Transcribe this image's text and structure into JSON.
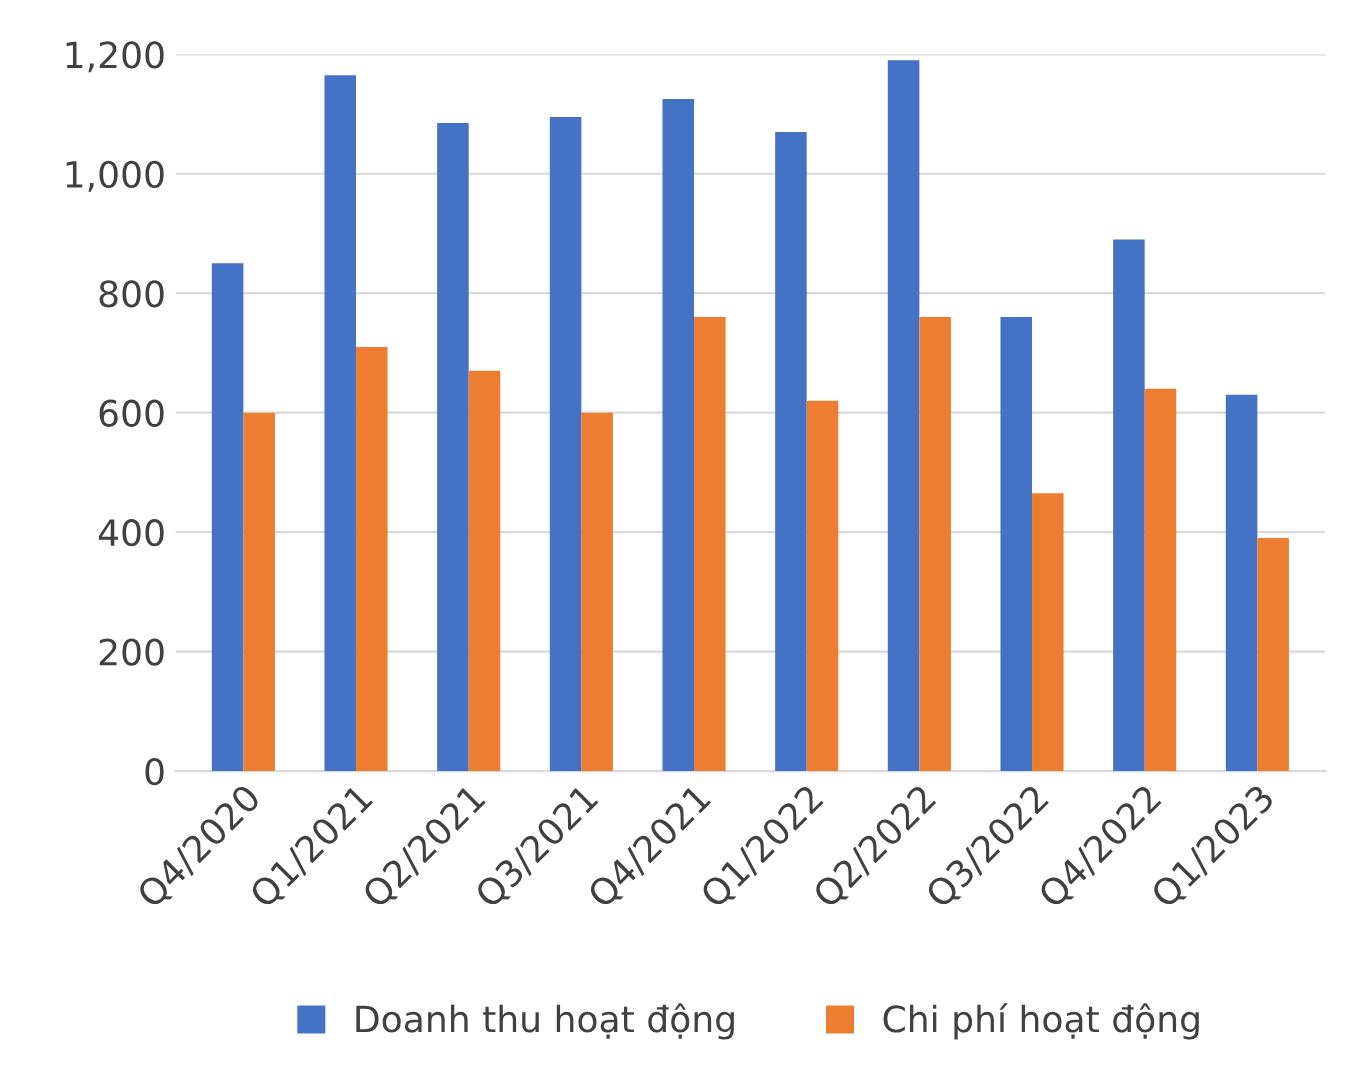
{
  "chart_data": {
    "type": "bar",
    "categories": [
      "Q4/2020",
      "Q1/2021",
      "Q2/2021",
      "Q3/2021",
      "Q4/2021",
      "Q1/2022",
      "Q2/2022",
      "Q3/2022",
      "Q4/2022",
      "Q1/2023"
    ],
    "series": [
      {
        "name": "Doanh thu hoạt động",
        "color": "#4472c4",
        "values": [
          850,
          1165,
          1085,
          1095,
          1125,
          1070,
          1190,
          760,
          890,
          630
        ]
      },
      {
        "name": "Chi phí hoạt động",
        "color": "#ed7d31",
        "values": [
          600,
          710,
          670,
          600,
          760,
          620,
          760,
          465,
          640,
          390
        ]
      }
    ],
    "ylim": [
      0,
      1200
    ],
    "yticks": [
      0,
      200,
      400,
      600,
      800,
      {
        "value": 1000,
        "label": "1,000"
      },
      {
        "value": 1200,
        "label": "1,200"
      }
    ],
    "grid": "y",
    "legend": "bottom"
  }
}
